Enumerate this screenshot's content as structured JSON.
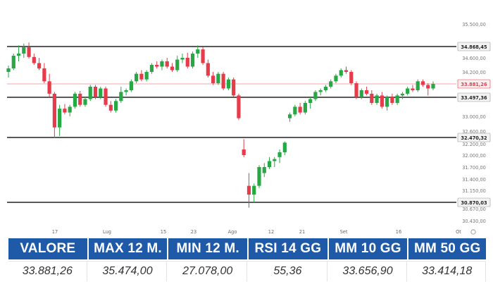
{
  "chart_data": {
    "type": "candlestick",
    "y_ticks": [
      "35.500,00",
      "34.868,45",
      "34.600,00",
      "34.200,00",
      "33.881,26",
      "33.497,36",
      "33.000,00",
      "32.600,00",
      "32.470,32",
      "32.200,00",
      "32.000,00",
      "31.700,00",
      "31.400,00",
      "31.150,00",
      "30.870,03",
      "30.670,00",
      "30.430,00"
    ],
    "y_tick_values": [
      35500,
      34868.45,
      34600,
      34200,
      33881.26,
      33497.36,
      33000,
      32600,
      32470.32,
      32200,
      32000,
      31700,
      31400,
      31150,
      30870.03,
      30670,
      30430
    ],
    "highlighted_ticks": [
      "34.868,45",
      "33.881,26",
      "33.497,36",
      "32.470,32",
      "30.870,03"
    ],
    "x_ticks": [
      "17",
      "Lug",
      "15",
      "23",
      "Ago",
      "12",
      "21",
      "Set",
      "16",
      "Ot"
    ],
    "levels": [
      34868.45,
      33497.36,
      32470.32,
      30870.03
    ],
    "last_price": 33881.26,
    "ylim": [
      30300,
      35650
    ],
    "candles": [
      {
        "o": 34200,
        "h": 34380,
        "l": 34050,
        "c": 34300
      },
      {
        "o": 34300,
        "h": 34700,
        "l": 34250,
        "c": 34650
      },
      {
        "o": 34650,
        "h": 34900,
        "l": 34500,
        "c": 34700
      },
      {
        "o": 34700,
        "h": 34950,
        "l": 34600,
        "c": 34850
      },
      {
        "o": 34850,
        "h": 34980,
        "l": 34580,
        "c": 34620
      },
      {
        "o": 34620,
        "h": 34700,
        "l": 34400,
        "c": 34450
      },
      {
        "o": 34450,
        "h": 34600,
        "l": 34250,
        "c": 34300
      },
      {
        "o": 34300,
        "h": 34450,
        "l": 33900,
        "c": 33950
      },
      {
        "o": 33950,
        "h": 34150,
        "l": 33500,
        "c": 33600
      },
      {
        "o": 33600,
        "h": 33650,
        "l": 32450,
        "c": 32700
      },
      {
        "o": 32700,
        "h": 33300,
        "l": 32500,
        "c": 33200
      },
      {
        "o": 33200,
        "h": 33320,
        "l": 33050,
        "c": 33100
      },
      {
        "o": 33100,
        "h": 33300,
        "l": 33000,
        "c": 33250
      },
      {
        "o": 33250,
        "h": 33650,
        "l": 33200,
        "c": 33600
      },
      {
        "o": 33600,
        "h": 33680,
        "l": 33250,
        "c": 33300
      },
      {
        "o": 33300,
        "h": 33500,
        "l": 33250,
        "c": 33450
      },
      {
        "o": 33450,
        "h": 33850,
        "l": 33400,
        "c": 33800
      },
      {
        "o": 33800,
        "h": 33850,
        "l": 33450,
        "c": 33500
      },
      {
        "o": 33500,
        "h": 33800,
        "l": 33450,
        "c": 33750
      },
      {
        "o": 33750,
        "h": 33800,
        "l": 33250,
        "c": 33300
      },
      {
        "o": 33300,
        "h": 33400,
        "l": 33100,
        "c": 33150
      },
      {
        "o": 33150,
        "h": 33450,
        "l": 33100,
        "c": 33400
      },
      {
        "o": 33400,
        "h": 33800,
        "l": 33350,
        "c": 33650
      },
      {
        "o": 33650,
        "h": 33750,
        "l": 33550,
        "c": 33700
      },
      {
        "o": 33700,
        "h": 34000,
        "l": 33650,
        "c": 33950
      },
      {
        "o": 33950,
        "h": 34200,
        "l": 33900,
        "c": 34150
      },
      {
        "o": 34150,
        "h": 34250,
        "l": 33950,
        "c": 34000
      },
      {
        "o": 34000,
        "h": 34250,
        "l": 33950,
        "c": 34200
      },
      {
        "o": 34200,
        "h": 34450,
        "l": 34150,
        "c": 34400
      },
      {
        "o": 34400,
        "h": 34500,
        "l": 34300,
        "c": 34350
      },
      {
        "o": 34350,
        "h": 34550,
        "l": 34250,
        "c": 34500
      },
      {
        "o": 34500,
        "h": 34600,
        "l": 34300,
        "c": 34350
      },
      {
        "o": 34350,
        "h": 34450,
        "l": 34200,
        "c": 34250
      },
      {
        "o": 34250,
        "h": 34650,
        "l": 34200,
        "c": 34550
      },
      {
        "o": 34550,
        "h": 34700,
        "l": 34450,
        "c": 34600
      },
      {
        "o": 34600,
        "h": 34720,
        "l": 34300,
        "c": 34350
      },
      {
        "o": 34350,
        "h": 34750,
        "l": 34300,
        "c": 34700
      },
      {
        "o": 34700,
        "h": 34900,
        "l": 34600,
        "c": 34800
      },
      {
        "o": 34800,
        "h": 34850,
        "l": 34400,
        "c": 34450
      },
      {
        "o": 34450,
        "h": 34550,
        "l": 34050,
        "c": 34100
      },
      {
        "o": 34100,
        "h": 34200,
        "l": 33850,
        "c": 33900
      },
      {
        "o": 33900,
        "h": 34200,
        "l": 33850,
        "c": 34150
      },
      {
        "o": 34150,
        "h": 34200,
        "l": 33700,
        "c": 33750
      },
      {
        "o": 33750,
        "h": 34050,
        "l": 33700,
        "c": 34000
      },
      {
        "o": 34000,
        "h": 34050,
        "l": 33500,
        "c": 33550
      },
      {
        "o": 33550,
        "h": 33600,
        "l": 32900,
        "c": 32950
      },
      {
        "o": 32100,
        "h": 32400,
        "l": 31950,
        "c": 32000
      },
      {
        "o": 31250,
        "h": 31550,
        "l": 30700,
        "c": 31050
      },
      {
        "o": 31050,
        "h": 31300,
        "l": 30850,
        "c": 31250
      },
      {
        "o": 31250,
        "h": 31750,
        "l": 31200,
        "c": 31700
      },
      {
        "o": 31550,
        "h": 31800,
        "l": 31450,
        "c": 31700
      },
      {
        "o": 31700,
        "h": 31950,
        "l": 31650,
        "c": 31850
      },
      {
        "o": 31850,
        "h": 31950,
        "l": 31700,
        "c": 31900
      },
      {
        "o": 31950,
        "h": 32100,
        "l": 31800,
        "c": 32050
      },
      {
        "o": 32050,
        "h": 32300,
        "l": 32000,
        "c": 32250
      },
      {
        "o": 32950,
        "h": 33100,
        "l": 32850,
        "c": 33050
      },
      {
        "o": 33050,
        "h": 33300,
        "l": 33000,
        "c": 33250
      },
      {
        "o": 33250,
        "h": 33350,
        "l": 33050,
        "c": 33100
      },
      {
        "o": 33100,
        "h": 33400,
        "l": 33050,
        "c": 33350
      },
      {
        "o": 33350,
        "h": 33500,
        "l": 33200,
        "c": 33450
      },
      {
        "o": 33450,
        "h": 33700,
        "l": 33400,
        "c": 33650
      },
      {
        "o": 33650,
        "h": 33750,
        "l": 33550,
        "c": 33700
      },
      {
        "o": 33700,
        "h": 33850,
        "l": 33650,
        "c": 33800
      },
      {
        "o": 33800,
        "h": 34000,
        "l": 33750,
        "c": 33950
      },
      {
        "o": 33950,
        "h": 34150,
        "l": 33900,
        "c": 34100
      },
      {
        "o": 34100,
        "h": 34300,
        "l": 34050,
        "c": 34250
      },
      {
        "o": 34250,
        "h": 34350,
        "l": 34150,
        "c": 34200
      },
      {
        "o": 34200,
        "h": 34250,
        "l": 33850,
        "c": 33900
      },
      {
        "o": 33900,
        "h": 33950,
        "l": 33450,
        "c": 33500
      },
      {
        "o": 33500,
        "h": 33750,
        "l": 33450,
        "c": 33700
      },
      {
        "o": 33700,
        "h": 33800,
        "l": 33550,
        "c": 33600
      },
      {
        "o": 33600,
        "h": 33700,
        "l": 33300,
        "c": 33350
      },
      {
        "o": 33350,
        "h": 33600,
        "l": 33300,
        "c": 33550
      },
      {
        "o": 33550,
        "h": 33650,
        "l": 33200,
        "c": 33250
      },
      {
        "o": 33250,
        "h": 33550,
        "l": 33150,
        "c": 33500
      },
      {
        "o": 33500,
        "h": 33600,
        "l": 33300,
        "c": 33350
      },
      {
        "o": 33350,
        "h": 33600,
        "l": 33300,
        "c": 33550
      },
      {
        "o": 33550,
        "h": 33650,
        "l": 33450,
        "c": 33600
      },
      {
        "o": 33600,
        "h": 33800,
        "l": 33550,
        "c": 33750
      },
      {
        "o": 33750,
        "h": 33850,
        "l": 33650,
        "c": 33700
      },
      {
        "o": 33700,
        "h": 34000,
        "l": 33650,
        "c": 33950
      },
      {
        "o": 33950,
        "h": 34000,
        "l": 33800,
        "c": 33850
      },
      {
        "o": 33850,
        "h": 33900,
        "l": 33550,
        "c": 33750
      },
      {
        "o": 33750,
        "h": 33950,
        "l": 33700,
        "c": 33881.26
      }
    ],
    "colors": {
      "up": "#27a844",
      "down": "#e53b4a",
      "level": "#222222",
      "last": "#e53b4a",
      "grid_text": "#555555"
    }
  },
  "stats": {
    "headers": [
      "VALORE",
      "MAX 12 M.",
      "MIN 12 M.",
      "RSI 14 GG",
      "MM 10 GG",
      "MM 50 GG"
    ],
    "values": [
      "33.881,26",
      "35.474,00",
      "27.078,00",
      "55,36",
      "33.656,90",
      "33.414,18"
    ],
    "header_color": "#1e5aa8"
  }
}
